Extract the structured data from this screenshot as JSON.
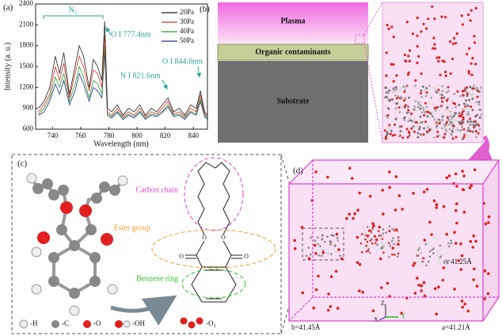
{
  "chart_data": {
    "type": "line",
    "panel_label": "(a)",
    "x_label": "Wavelength (nm)",
    "y_label": "Intensity (a. u.)",
    "x": [
      730,
      734,
      738,
      742,
      745,
      748,
      752,
      756,
      759,
      762,
      766,
      769,
      772,
      775,
      777,
      779,
      782,
      786,
      790,
      794,
      798,
      802,
      806,
      810,
      814,
      818,
      822,
      826,
      830,
      834,
      838,
      842,
      845,
      848,
      850
    ],
    "series": [
      {
        "name": "20Pa",
        "color": "#222222",
        "values": [
          900,
          1000,
          1200,
          1650,
          1400,
          1700,
          1100,
          1500,
          1800,
          1650,
          1200,
          1600,
          1500,
          1300,
          2150,
          900,
          850,
          950,
          800,
          900,
          850,
          950,
          800,
          900,
          850,
          950,
          1050,
          850,
          900,
          800,
          950,
          900,
          1150,
          850,
          800
        ]
      },
      {
        "name": "30Pa",
        "color": "#e03030",
        "values": [
          850,
          950,
          1100,
          1500,
          1300,
          1550,
          1050,
          1400,
          1650,
          1500,
          1150,
          1450,
          1400,
          1200,
          1950,
          850,
          800,
          900,
          780,
          850,
          800,
          900,
          780,
          850,
          820,
          900,
          1000,
          820,
          850,
          780,
          900,
          850,
          1100,
          820,
          780
        ]
      },
      {
        "name": "40Pa",
        "color": "#2ca02c",
        "values": [
          820,
          900,
          1050,
          1350,
          1200,
          1400,
          1000,
          1250,
          1500,
          1350,
          1050,
          1300,
          1250,
          1100,
          1800,
          820,
          780,
          860,
          760,
          820,
          780,
          860,
          760,
          820,
          800,
          860,
          950,
          800,
          820,
          760,
          860,
          820,
          1050,
          800,
          760
        ]
      },
      {
        "name": "50Pa",
        "color": "#1f2f8f",
        "values": [
          800,
          850,
          1000,
          1250,
          1100,
          1300,
          950,
          1150,
          1400,
          1250,
          1000,
          1200,
          1150,
          1050,
          1700,
          800,
          760,
          840,
          740,
          800,
          760,
          840,
          740,
          800,
          780,
          840,
          920,
          780,
          800,
          740,
          840,
          800,
          1000,
          780,
          740
        ]
      }
    ],
    "xlim": [
      728,
      850
    ],
    "xticks": [
      740,
      760,
      780,
      800,
      820,
      840
    ],
    "ylim": [
      600,
      2400
    ],
    "yticks": [
      600,
      900,
      1200,
      1500,
      1800,
      2100,
      2400
    ],
    "legend": "upper right",
    "annotations": [
      "N₂",
      "O I 777.4nm",
      "N I 821.6nm",
      "O I 844.6nm"
    ]
  },
  "panel_b": {
    "label": "(b)",
    "layers": [
      "Plasma",
      "Organic contaminants",
      "Substrate"
    ]
  },
  "panel_c": {
    "label": "(c)",
    "groups": [
      "Carbon chain",
      "Ester group",
      "Benzene ring"
    ],
    "atoms": [
      "O",
      "O",
      "O",
      "O"
    ],
    "legend": [
      "-H",
      "-C",
      "-O",
      "-OH",
      "-O₃"
    ]
  },
  "panel_d": {
    "label": "(d)",
    "dims": [
      "c=41.25Å",
      "b=41.45Å",
      "a=41.21Å"
    ],
    "axes": [
      "Z",
      "X",
      "Y"
    ]
  }
}
